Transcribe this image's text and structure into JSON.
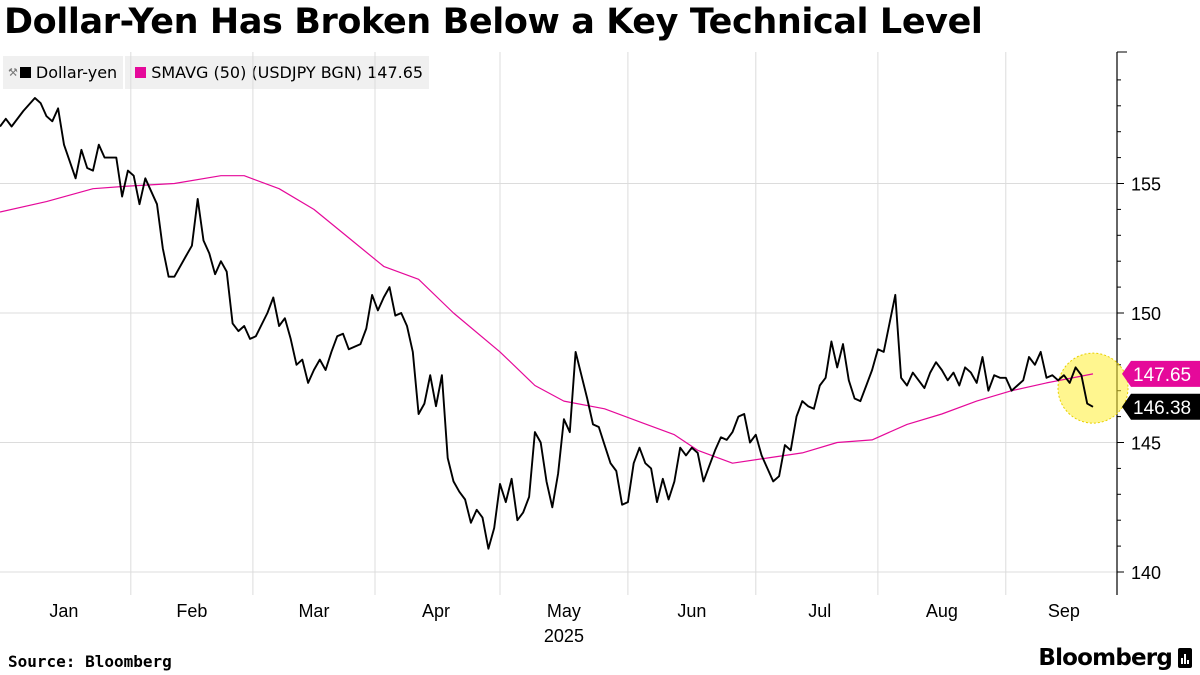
{
  "chart_data": {
    "type": "line",
    "title": "Dollar-Yen Has Broken Below a Key Technical Level",
    "x_ticks": [
      "Jan",
      "Feb",
      "Mar",
      "Apr",
      "May",
      "Jun",
      "Jul",
      "Aug",
      "Sep"
    ],
    "x_year": "2025",
    "y_ticks": [
      140,
      145,
      150,
      155
    ],
    "ylim": [
      139.5,
      160.2
    ],
    "grid": true,
    "legend_position": "top-left",
    "last_labels": [
      {
        "text": "147.65",
        "value": 147.65,
        "color": "#e5099a"
      },
      {
        "text": "146.38",
        "value": 146.38,
        "color": "#000000"
      }
    ],
    "highlight": {
      "date_index": 213,
      "value": 147.1,
      "color": "#ffee33"
    },
    "series": [
      {
        "name": "Dollar-yen",
        "color": "#000000",
        "values": [
          [
            0,
            157.2
          ],
          [
            1,
            157.5
          ],
          [
            2,
            157.2
          ],
          [
            4,
            157.8
          ],
          [
            6,
            158.3
          ],
          [
            7,
            158.1
          ],
          [
            8,
            157.6
          ],
          [
            9,
            157.4
          ],
          [
            10,
            157.9
          ],
          [
            11,
            156.5
          ],
          [
            13,
            155.2
          ],
          [
            14,
            156.3
          ],
          [
            15,
            155.6
          ],
          [
            16,
            155.5
          ],
          [
            17,
            156.5
          ],
          [
            18,
            156.0
          ],
          [
            20,
            156.0
          ],
          [
            21,
            154.5
          ],
          [
            22,
            155.5
          ],
          [
            23,
            155.3
          ],
          [
            24,
            154.2
          ],
          [
            25,
            155.2
          ],
          [
            27,
            154.2
          ],
          [
            28,
            152.5
          ],
          [
            29,
            151.4
          ],
          [
            30,
            151.4
          ],
          [
            32,
            152.2
          ],
          [
            33,
            152.6
          ],
          [
            34,
            154.4
          ],
          [
            35,
            152.8
          ],
          [
            36,
            152.3
          ],
          [
            37,
            151.5
          ],
          [
            38,
            152.0
          ],
          [
            39,
            151.6
          ],
          [
            40,
            149.6
          ],
          [
            41,
            149.3
          ],
          [
            42,
            149.5
          ],
          [
            43,
            149.0
          ],
          [
            44,
            149.1
          ],
          [
            46,
            150.0
          ],
          [
            47,
            150.6
          ],
          [
            48,
            149.5
          ],
          [
            49,
            149.8
          ],
          [
            50,
            149.0
          ],
          [
            51,
            148.0
          ],
          [
            52,
            148.2
          ],
          [
            53,
            147.3
          ],
          [
            54,
            147.8
          ],
          [
            55,
            148.2
          ],
          [
            56,
            147.8
          ],
          [
            57,
            148.5
          ],
          [
            58,
            149.1
          ],
          [
            59,
            149.2
          ],
          [
            60,
            148.6
          ],
          [
            62,
            148.8
          ],
          [
            63,
            149.4
          ],
          [
            64,
            150.7
          ],
          [
            65,
            150.1
          ],
          [
            66,
            150.6
          ],
          [
            67,
            151.0
          ],
          [
            68,
            149.9
          ],
          [
            69,
            150.0
          ],
          [
            70,
            149.5
          ],
          [
            71,
            148.5
          ],
          [
            72,
            146.1
          ],
          [
            73,
            146.5
          ],
          [
            74,
            147.6
          ],
          [
            75,
            146.4
          ],
          [
            76,
            147.6
          ],
          [
            77,
            144.4
          ],
          [
            78,
            143.5
          ],
          [
            79,
            143.1
          ],
          [
            80,
            142.8
          ],
          [
            81,
            141.9
          ],
          [
            82,
            142.4
          ],
          [
            83,
            142.1
          ],
          [
            84,
            140.9
          ],
          [
            85,
            141.7
          ],
          [
            86,
            143.4
          ],
          [
            87,
            142.7
          ],
          [
            88,
            143.6
          ],
          [
            89,
            142.0
          ],
          [
            90,
            142.3
          ],
          [
            91,
            142.9
          ],
          [
            92,
            145.4
          ],
          [
            93,
            145.0
          ],
          [
            94,
            143.5
          ],
          [
            95,
            142.5
          ],
          [
            96,
            143.8
          ],
          [
            97,
            145.9
          ],
          [
            98,
            145.4
          ],
          [
            99,
            148.5
          ],
          [
            100,
            147.6
          ],
          [
            101,
            146.7
          ],
          [
            102,
            145.7
          ],
          [
            103,
            145.6
          ],
          [
            104,
            144.9
          ],
          [
            105,
            144.2
          ],
          [
            106,
            143.9
          ],
          [
            107,
            142.6
          ],
          [
            108,
            142.7
          ],
          [
            109,
            144.2
          ],
          [
            110,
            144.8
          ],
          [
            111,
            144.2
          ],
          [
            112,
            144.0
          ],
          [
            113,
            142.7
          ],
          [
            114,
            143.6
          ],
          [
            115,
            142.8
          ],
          [
            116,
            143.5
          ],
          [
            117,
            144.8
          ],
          [
            118,
            144.5
          ],
          [
            119,
            144.8
          ],
          [
            120,
            144.6
          ],
          [
            121,
            143.5
          ],
          [
            122,
            144.1
          ],
          [
            123,
            144.7
          ],
          [
            124,
            145.2
          ],
          [
            125,
            145.1
          ],
          [
            126,
            145.4
          ],
          [
            127,
            146.0
          ],
          [
            128,
            146.1
          ],
          [
            129,
            145.0
          ],
          [
            130,
            145.3
          ],
          [
            131,
            144.5
          ],
          [
            132,
            144.0
          ],
          [
            133,
            143.5
          ],
          [
            134,
            143.7
          ],
          [
            135,
            144.9
          ],
          [
            136,
            144.7
          ],
          [
            137,
            146.0
          ],
          [
            138,
            146.6
          ],
          [
            139,
            146.4
          ],
          [
            140,
            146.3
          ],
          [
            141,
            147.2
          ],
          [
            142,
            147.5
          ],
          [
            143,
            148.9
          ],
          [
            144,
            147.9
          ],
          [
            145,
            148.8
          ],
          [
            146,
            147.4
          ],
          [
            147,
            146.7
          ],
          [
            148,
            146.6
          ],
          [
            149,
            147.2
          ],
          [
            150,
            147.8
          ],
          [
            151,
            148.6
          ],
          [
            152,
            148.5
          ],
          [
            153,
            149.6
          ],
          [
            154,
            150.7
          ],
          [
            155,
            147.5
          ],
          [
            156,
            147.2
          ],
          [
            157,
            147.7
          ],
          [
            158,
            147.4
          ],
          [
            159,
            147.1
          ],
          [
            160,
            147.7
          ],
          [
            161,
            148.1
          ],
          [
            162,
            147.8
          ],
          [
            163,
            147.4
          ],
          [
            164,
            147.7
          ],
          [
            165,
            147.2
          ],
          [
            166,
            147.9
          ],
          [
            167,
            147.7
          ],
          [
            168,
            147.3
          ],
          [
            169,
            148.3
          ],
          [
            170,
            147.0
          ],
          [
            171,
            147.6
          ],
          [
            172,
            147.5
          ],
          [
            173,
            147.5
          ],
          [
            174,
            147.0
          ],
          [
            175,
            147.2
          ],
          [
            176,
            147.4
          ],
          [
            177,
            148.3
          ],
          [
            178,
            148.0
          ],
          [
            179,
            148.5
          ],
          [
            180,
            147.5
          ],
          [
            181,
            147.6
          ],
          [
            182,
            147.4
          ],
          [
            183,
            147.6
          ],
          [
            184,
            147.3
          ],
          [
            185,
            147.9
          ],
          [
            186,
            147.6
          ],
          [
            187,
            146.5
          ],
          [
            188,
            146.38
          ]
        ]
      },
      {
        "name": "SMAVG (50) (USDJPY BGN) 147.65",
        "color": "#e5099a",
        "values": [
          [
            0,
            153.9
          ],
          [
            8,
            154.3
          ],
          [
            16,
            154.8
          ],
          [
            22,
            154.9
          ],
          [
            30,
            155.0
          ],
          [
            38,
            155.3
          ],
          [
            42,
            155.3
          ],
          [
            48,
            154.8
          ],
          [
            54,
            154.0
          ],
          [
            60,
            152.9
          ],
          [
            66,
            151.8
          ],
          [
            72,
            151.3
          ],
          [
            78,
            150.0
          ],
          [
            86,
            148.5
          ],
          [
            92,
            147.2
          ],
          [
            97,
            146.6
          ],
          [
            104,
            146.3
          ],
          [
            110,
            145.8
          ],
          [
            116,
            145.3
          ],
          [
            120,
            144.7
          ],
          [
            126,
            144.2
          ],
          [
            132,
            144.4
          ],
          [
            138,
            144.6
          ],
          [
            144,
            145.0
          ],
          [
            150,
            145.1
          ],
          [
            156,
            145.7
          ],
          [
            162,
            146.1
          ],
          [
            168,
            146.6
          ],
          [
            174,
            147.0
          ],
          [
            180,
            147.3
          ],
          [
            188,
            147.65
          ]
        ]
      }
    ]
  }
}
